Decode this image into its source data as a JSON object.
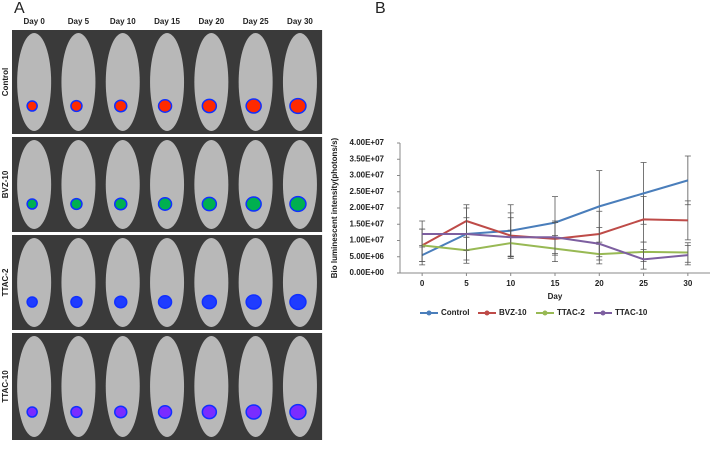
{
  "panel_a": {
    "label": "A",
    "days": [
      "Day 0",
      "Day 5",
      "Day 10",
      "Day 15",
      "Day 20",
      "Day 25",
      "Day 30"
    ],
    "groups": [
      "Control",
      "BVZ-10",
      "TTAC-2",
      "TTAC-10"
    ]
  },
  "chart_data": {
    "type": "line",
    "panel_label": "B",
    "y_label": "Bio luminescent intensity(photons/s)",
    "x_label": "Day",
    "x": [
      0,
      5,
      10,
      15,
      20,
      25,
      30
    ],
    "xlim": [
      -2.5,
      32.5
    ],
    "xticks": [
      0,
      5,
      10,
      15,
      20,
      25,
      30
    ],
    "ylim": [
      0,
      40000000
    ],
    "yticks": [
      {
        "value": 0,
        "label": "0.00E+00"
      },
      {
        "value": 5000000,
        "label": "5.00E+06"
      },
      {
        "value": 10000000,
        "label": "1.00E+07"
      },
      {
        "value": 15000000,
        "label": "1.50E+07"
      },
      {
        "value": 20000000,
        "label": "2.00E+07"
      },
      {
        "value": 25000000,
        "label": "2.50E+07"
      },
      {
        "value": 30000000,
        "label": "3.00E+07"
      },
      {
        "value": 35000000,
        "label": "3.50E+07"
      },
      {
        "value": 40000000,
        "label": "4.00E+07"
      }
    ],
    "legend": "bottom",
    "series": [
      {
        "name": "Control",
        "color": "#4a7ebb",
        "values": [
          5500000,
          12000000,
          13000000,
          15500000,
          20500000,
          24500000,
          28500000
        ],
        "errors": [
          3000000,
          8000000,
          8000000,
          8000000,
          11000000,
          9500000,
          7500000
        ]
      },
      {
        "name": "BVZ-10",
        "color": "#be4b48",
        "values": [
          8500000,
          16000000,
          11500000,
          10500000,
          12000000,
          16500000,
          16200000
        ],
        "errors": [
          5000000,
          5000000,
          7000000,
          5000000,
          7000000,
          7000000,
          6000000
        ]
      },
      {
        "name": "TTAC-2",
        "color": "#98b954",
        "values": [
          8500000,
          7000000,
          9200000,
          7500000,
          5800000,
          6500000,
          6300000
        ],
        "errors": [
          5000000,
          4000000,
          4000000,
          4000000,
          3000000,
          3000000,
          3000000
        ]
      },
      {
        "name": "TTAC-10",
        "color": "#7d5fa0",
        "values": [
          12000000,
          12000000,
          11000000,
          11000000,
          9000000,
          4200000,
          5500000
        ],
        "errors": [
          4000000,
          5000000,
          6000000,
          5000000,
          5000000,
          3000000,
          3000000
        ]
      }
    ]
  }
}
